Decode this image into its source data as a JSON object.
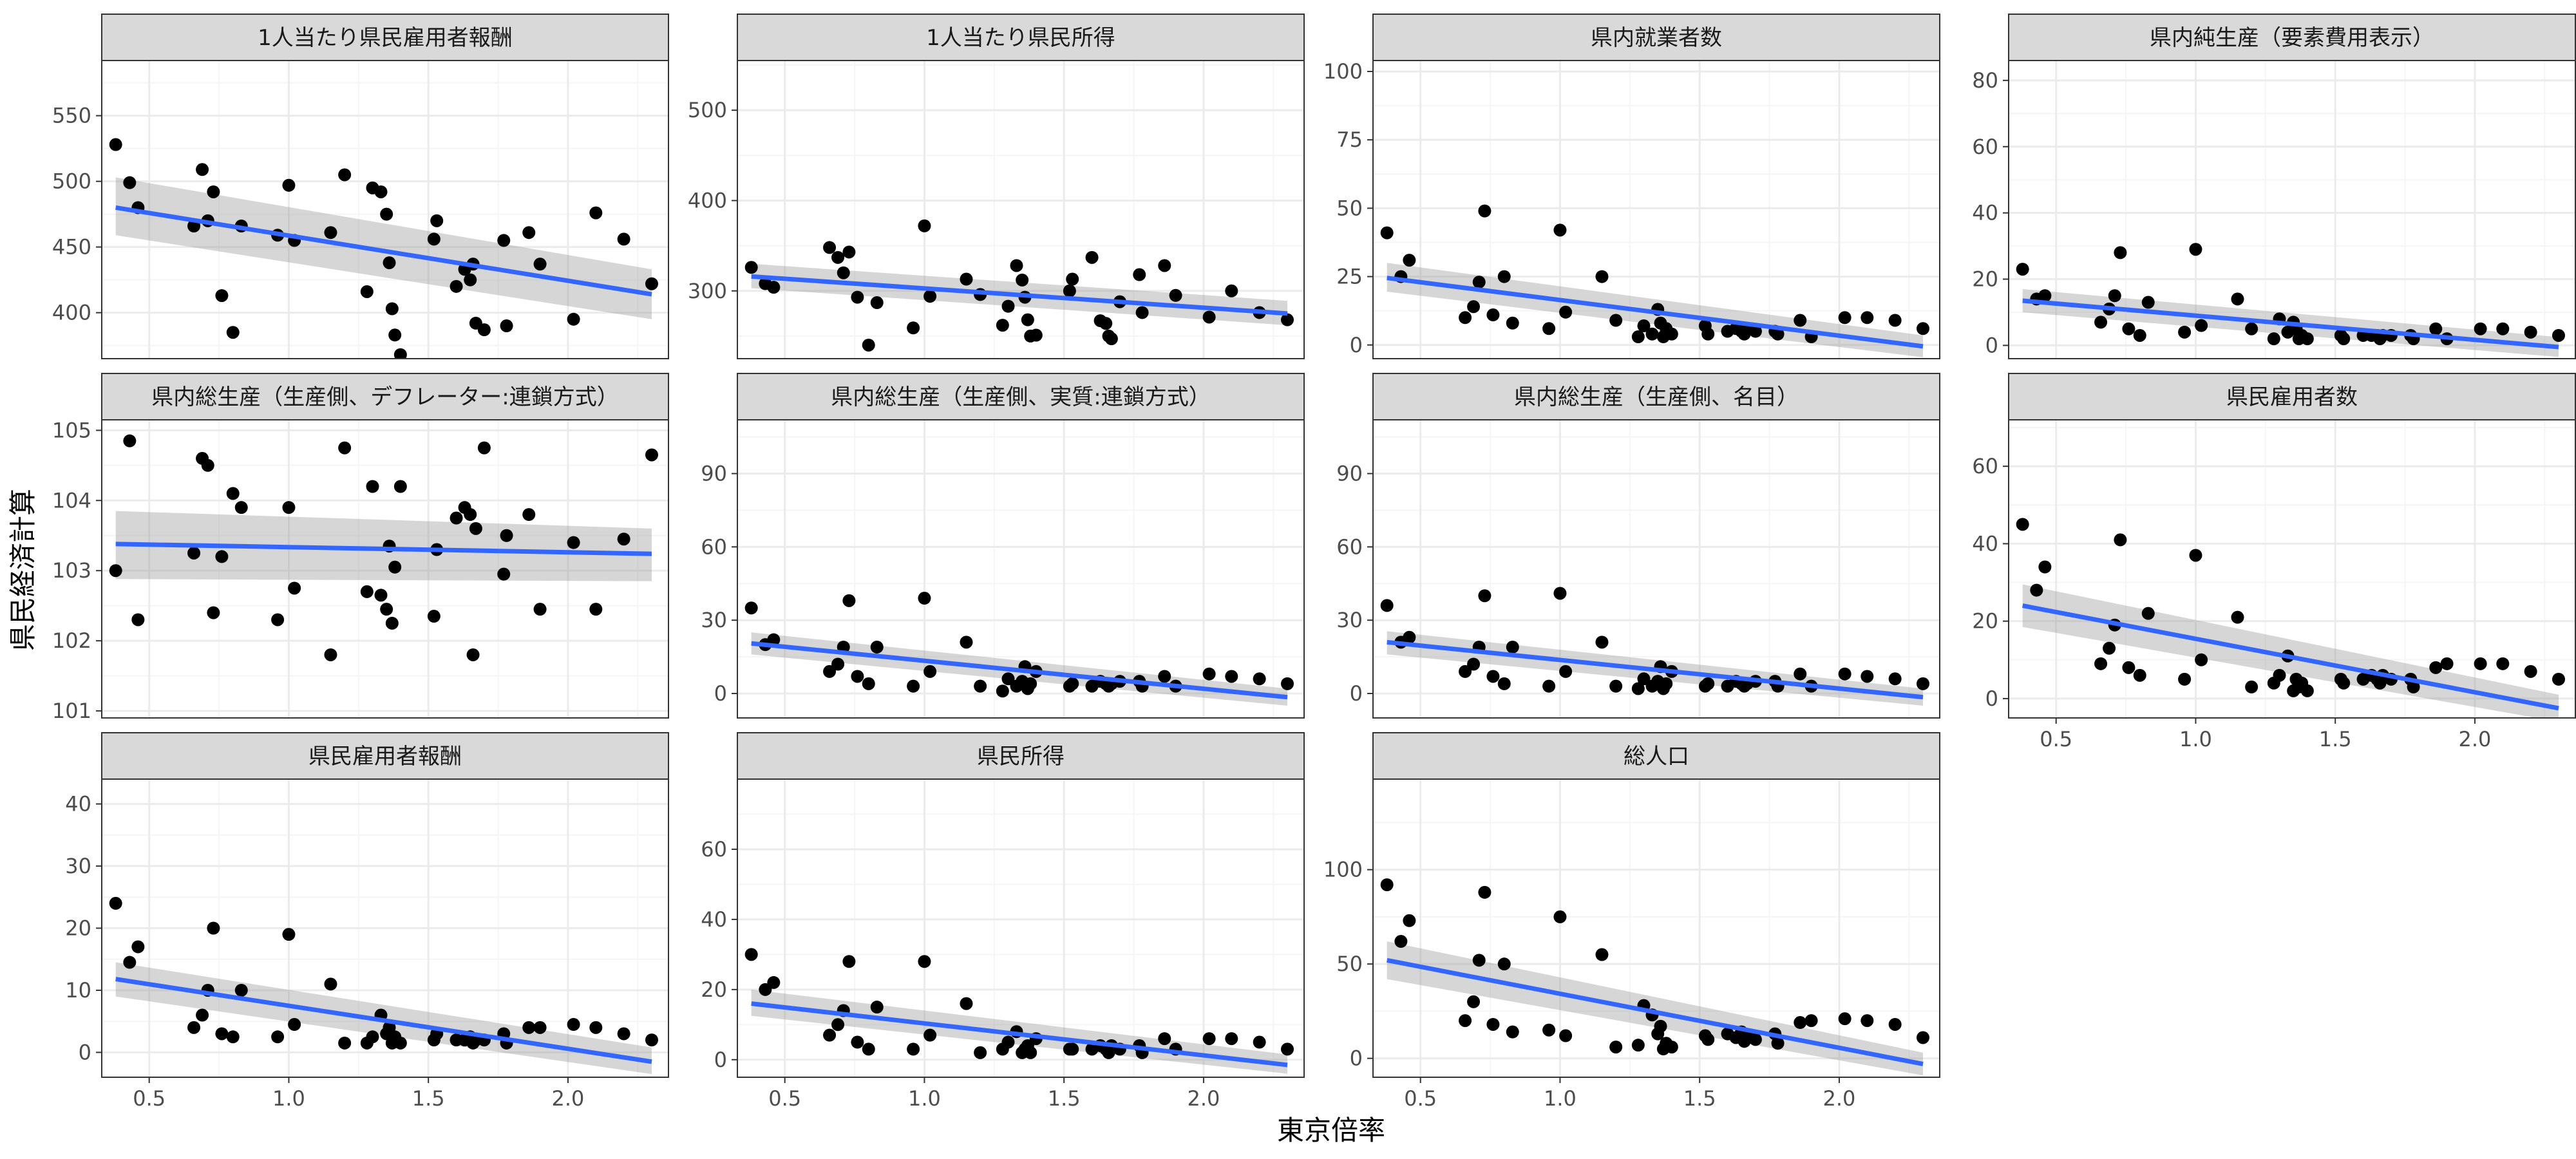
{
  "chart_data": {
    "type": "scatter",
    "layout": "facet-grid",
    "xlabel": "東京倍率",
    "ylabel": "県民経済計算",
    "xlim": [
      0.33,
      2.36
    ],
    "xticks": [
      0.5,
      1.0,
      1.5,
      2.0
    ],
    "xtick_labels": [
      "0.5",
      "1.0",
      "1.5",
      "2.0"
    ],
    "grid": true,
    "trend": "linear fit with confidence band",
    "colors": {
      "point": "#000000",
      "line": "#3366FF",
      "band": "#999999",
      "strip_bg": "#D9D9D9",
      "grid_major": "#EBEBEB",
      "grid_minor": "#F5F5F5",
      "panel_border": "#333333"
    },
    "x_common": [
      0.38,
      0.43,
      0.46,
      0.66,
      0.69,
      0.71,
      0.73,
      0.76,
      0.8,
      0.83,
      0.96,
      1.0,
      1.02,
      1.15,
      1.2,
      1.28,
      1.3,
      1.33,
      1.35,
      1.36,
      1.37,
      1.38,
      1.4,
      1.52,
      1.53,
      1.6,
      1.63,
      1.65,
      1.66,
      1.67,
      1.7,
      1.77,
      1.78,
      1.86,
      1.9,
      2.02,
      2.1,
      2.2,
      2.3
    ],
    "panels": [
      {
        "title": "1人当たり県民雇用者報酬",
        "ylim": [
          365,
          592
        ],
        "yticks": [
          400,
          450,
          500,
          550
        ],
        "ytick_labels": [
          "400",
          "450",
          "500",
          "550"
        ],
        "y": [
          528,
          499,
          480,
          466,
          509,
          470,
          492,
          413,
          385,
          466,
          459,
          497,
          455,
          461,
          505,
          416,
          495,
          492,
          475,
          438,
          403,
          383,
          368,
          456,
          470,
          420,
          433,
          425,
          437,
          392,
          387,
          455,
          390,
          461,
          437,
          395,
          476,
          456,
          422
        ],
        "fit": {
          "x": [
            0.38,
            2.3
          ],
          "y": [
            480,
            414
          ],
          "lower": [
            459,
            395
          ],
          "upper": [
            503,
            433
          ]
        }
      },
      {
        "title": "1人当たり県民所得",
        "ylim": [
          225,
          555
        ],
        "yticks": [
          300,
          400,
          500
        ],
        "ytick_labels": [
          "300",
          "400",
          "500"
        ],
        "y": [
          326,
          308,
          304,
          348,
          337,
          320,
          343,
          293,
          240,
          287,
          259,
          372,
          294,
          313,
          296,
          262,
          283,
          328,
          312,
          293,
          268,
          250,
          251,
          300,
          313,
          337,
          267,
          264,
          250,
          247,
          288,
          318,
          276,
          328,
          295,
          271,
          300,
          276,
          268
        ],
        "fit": {
          "x": [
            0.38,
            2.3
          ],
          "y": [
            316,
            275
          ],
          "lower": [
            303,
            262
          ],
          "upper": [
            330,
            289
          ]
        }
      },
      {
        "title": "県内就業者数",
        "ylim": [
          -5,
          104
        ],
        "yticks": [
          0,
          25,
          50,
          75,
          100
        ],
        "ytick_labels": [
          "0",
          "25",
          "50",
          "75",
          "100"
        ],
        "y": [
          41,
          25,
          31,
          10,
          14,
          23,
          49,
          11,
          25,
          8,
          6,
          42,
          12,
          25,
          9,
          3,
          7,
          4,
          13,
          8,
          3,
          6,
          4,
          7,
          4,
          5,
          6,
          5,
          4,
          6,
          5,
          5,
          4,
          9,
          3,
          10,
          10,
          9,
          6
        ],
        "fit": {
          "x": [
            0.38,
            2.3
          ],
          "y": [
            24.5,
            -0.5
          ],
          "lower": [
            19.5,
            -4.5
          ],
          "upper": [
            30,
            3.5
          ]
        }
      },
      {
        "title": "県内純生産（要素費用表示）",
        "ylim": [
          -4,
          86
        ],
        "yticks": [
          0,
          20,
          40,
          60,
          80
        ],
        "ytick_labels": [
          "0",
          "20",
          "40",
          "60",
          "80"
        ],
        "y": [
          23,
          14,
          15,
          7,
          11,
          15,
          28,
          5,
          3,
          13,
          4,
          29,
          6,
          14,
          5,
          2,
          8,
          4,
          7,
          5,
          2,
          3,
          2,
          3,
          2,
          3,
          3,
          3,
          2,
          3,
          3,
          3,
          2,
          5,
          2,
          5,
          5,
          4,
          3
        ],
        "fit": {
          "x": [
            0.38,
            2.3
          ],
          "y": [
            13.5,
            -0.5
          ],
          "lower": [
            10,
            -3.5
          ],
          "upper": [
            17,
            2.5
          ]
        }
      },
      {
        "title": "県内総生産（生産側、デフレーター:連鎖方式）",
        "ylim": [
          100.9,
          105.15
        ],
        "yticks": [
          101,
          102,
          103,
          104,
          105
        ],
        "ytick_labels": [
          "101",
          "102",
          "103",
          "104",
          "105"
        ],
        "y": [
          103.0,
          104.85,
          102.3,
          103.25,
          104.6,
          104.5,
          102.4,
          103.2,
          104.1,
          103.9,
          102.3,
          103.9,
          102.75,
          101.8,
          104.75,
          102.7,
          104.2,
          102.65,
          102.45,
          103.35,
          102.25,
          103.05,
          104.2,
          102.35,
          103.3,
          103.75,
          103.9,
          103.8,
          101.8,
          103.6,
          104.75,
          102.95,
          103.5,
          103.8,
          102.45,
          103.4,
          102.45,
          103.45,
          104.65
        ],
        "fit": {
          "x": [
            0.38,
            2.3
          ],
          "y": [
            103.38,
            103.24
          ],
          "lower": [
            102.88,
            102.85
          ],
          "upper": [
            103.85,
            103.6
          ]
        }
      },
      {
        "title": "県内総生産（生産側、実質:連鎖方式）",
        "ylim": [
          -10,
          112
        ],
        "yticks": [
          0,
          30,
          60,
          90
        ],
        "ytick_labels": [
          "0",
          "30",
          "60",
          "90"
        ],
        "y": [
          35,
          20,
          22,
          9,
          12,
          19,
          38,
          7,
          4,
          19,
          3,
          39,
          9,
          21,
          3,
          1,
          6,
          3,
          5,
          11,
          2,
          4,
          9,
          3,
          4,
          3,
          5,
          4,
          3,
          4,
          5,
          5,
          3,
          7,
          3,
          8,
          7,
          6,
          4
        ],
        "fit": {
          "x": [
            0.38,
            2.3
          ],
          "y": [
            20.5,
            -1.5
          ],
          "lower": [
            16,
            -5
          ],
          "upper": [
            25,
            2
          ]
        }
      },
      {
        "title": "県内総生産（生産側、名目）",
        "ylim": [
          -10,
          112
        ],
        "yticks": [
          0,
          30,
          60,
          90
        ],
        "ytick_labels": [
          "0",
          "30",
          "60",
          "90"
        ],
        "y": [
          36,
          21,
          23,
          9,
          12,
          19,
          40,
          7,
          4,
          19,
          3,
          41,
          9,
          21,
          3,
          2,
          6,
          3,
          5,
          11,
          2,
          4,
          9,
          3,
          4,
          3,
          5,
          4,
          3,
          4,
          5,
          5,
          3,
          8,
          3,
          8,
          7,
          6,
          4
        ],
        "fit": {
          "x": [
            0.38,
            2.3
          ],
          "y": [
            21,
            -1.5
          ],
          "lower": [
            16,
            -5
          ],
          "upper": [
            25.5,
            2
          ]
        }
      },
      {
        "title": "県民雇用者数",
        "ylim": [
          -5,
          72
        ],
        "yticks": [
          0,
          20,
          40,
          60
        ],
        "ytick_labels": [
          "0",
          "20",
          "40",
          "60"
        ],
        "y": [
          45,
          28,
          34,
          9,
          13,
          19,
          41,
          8,
          6,
          22,
          5,
          37,
          10,
          21,
          3,
          4,
          6,
          11,
          2,
          5,
          3,
          4,
          2,
          5,
          4,
          5,
          6,
          5,
          4,
          6,
          5,
          5,
          3,
          8,
          9,
          9,
          9,
          7,
          5
        ],
        "fit": {
          "x": [
            0.38,
            2.3
          ],
          "y": [
            24,
            -2.5
          ],
          "lower": [
            18.5,
            -6
          ],
          "upper": [
            29.5,
            1
          ]
        }
      },
      {
        "title": "県民雇用者報酬",
        "ylim": [
          -4,
          44
        ],
        "yticks": [
          0,
          10,
          20,
          30,
          40
        ],
        "ytick_labels": [
          "0",
          "10",
          "20",
          "30",
          "40"
        ],
        "y": [
          24,
          14.5,
          17,
          4,
          6,
          10,
          20,
          3,
          2.5,
          10,
          2.5,
          19,
          4.5,
          11,
          1.5,
          1.5,
          2.5,
          6,
          3,
          4,
          1.5,
          2.5,
          1.5,
          2,
          3,
          2,
          2,
          2.5,
          1.5,
          2,
          2,
          3,
          1.5,
          4,
          4,
          4.5,
          4,
          3,
          2
        ],
        "fit": {
          "x": [
            0.38,
            2.3
          ],
          "y": [
            11.8,
            -1.5
          ],
          "lower": [
            9,
            -3.5
          ],
          "upper": [
            14.5,
            0.8
          ]
        }
      },
      {
        "title": "県民所得",
        "ylim": [
          -5,
          80
        ],
        "yticks": [
          0,
          20,
          40,
          60
        ],
        "ytick_labels": [
          "0",
          "20",
          "40",
          "60"
        ],
        "y": [
          30,
          20,
          22,
          7,
          10,
          14,
          28,
          5,
          3,
          15,
          3,
          28,
          7,
          16,
          2,
          3,
          5,
          8,
          2,
          3,
          4,
          2,
          6,
          3,
          3,
          3,
          4,
          3,
          2,
          4,
          3,
          4,
          2,
          6,
          3,
          6,
          6,
          5,
          3
        ],
        "fit": {
          "x": [
            0.38,
            2.3
          ],
          "y": [
            16,
            -1.5
          ],
          "lower": [
            12.5,
            -4
          ],
          "upper": [
            20,
            1.5
          ]
        }
      },
      {
        "title": "総人口",
        "ylim": [
          -10,
          148
        ],
        "yticks": [
          0,
          50,
          100
        ],
        "ytick_labels": [
          "0",
          "50",
          "100"
        ],
        "y": [
          92,
          62,
          73,
          20,
          30,
          52,
          88,
          18,
          50,
          14,
          15,
          75,
          12,
          55,
          6,
          7,
          28,
          23,
          13,
          17,
          5,
          8,
          6,
          12,
          10,
          13,
          11,
          14,
          9,
          12,
          10,
          13,
          8,
          19,
          20,
          21,
          20,
          18,
          11
        ],
        "fit": {
          "x": [
            0.38,
            2.3
          ],
          "y": [
            52,
            -3
          ],
          "lower": [
            42,
            -9
          ],
          "upper": [
            62,
            3
          ]
        }
      }
    ]
  }
}
